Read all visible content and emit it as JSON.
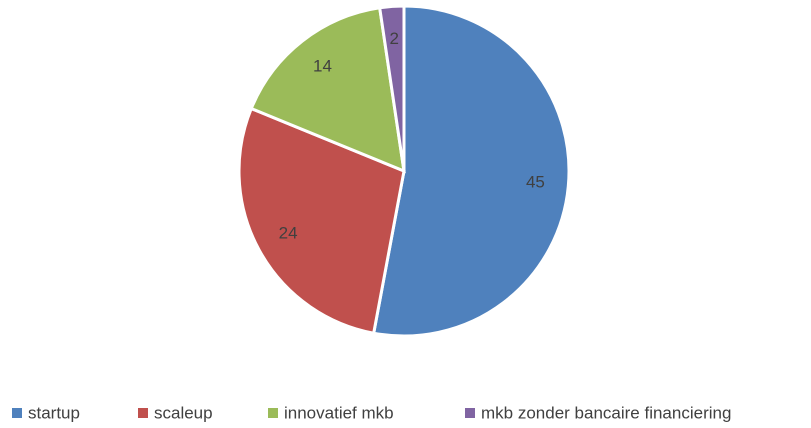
{
  "chart_data": {
    "type": "pie",
    "categories": [
      "startup",
      "scaleup",
      "innovatief mkb",
      "mkb zonder bancaire financiering"
    ],
    "values": [
      45,
      24,
      14,
      2
    ],
    "colors": [
      "#4f81bd",
      "#c0504d",
      "#9bbb59",
      "#8064a2"
    ],
    "legend": "bottom"
  }
}
